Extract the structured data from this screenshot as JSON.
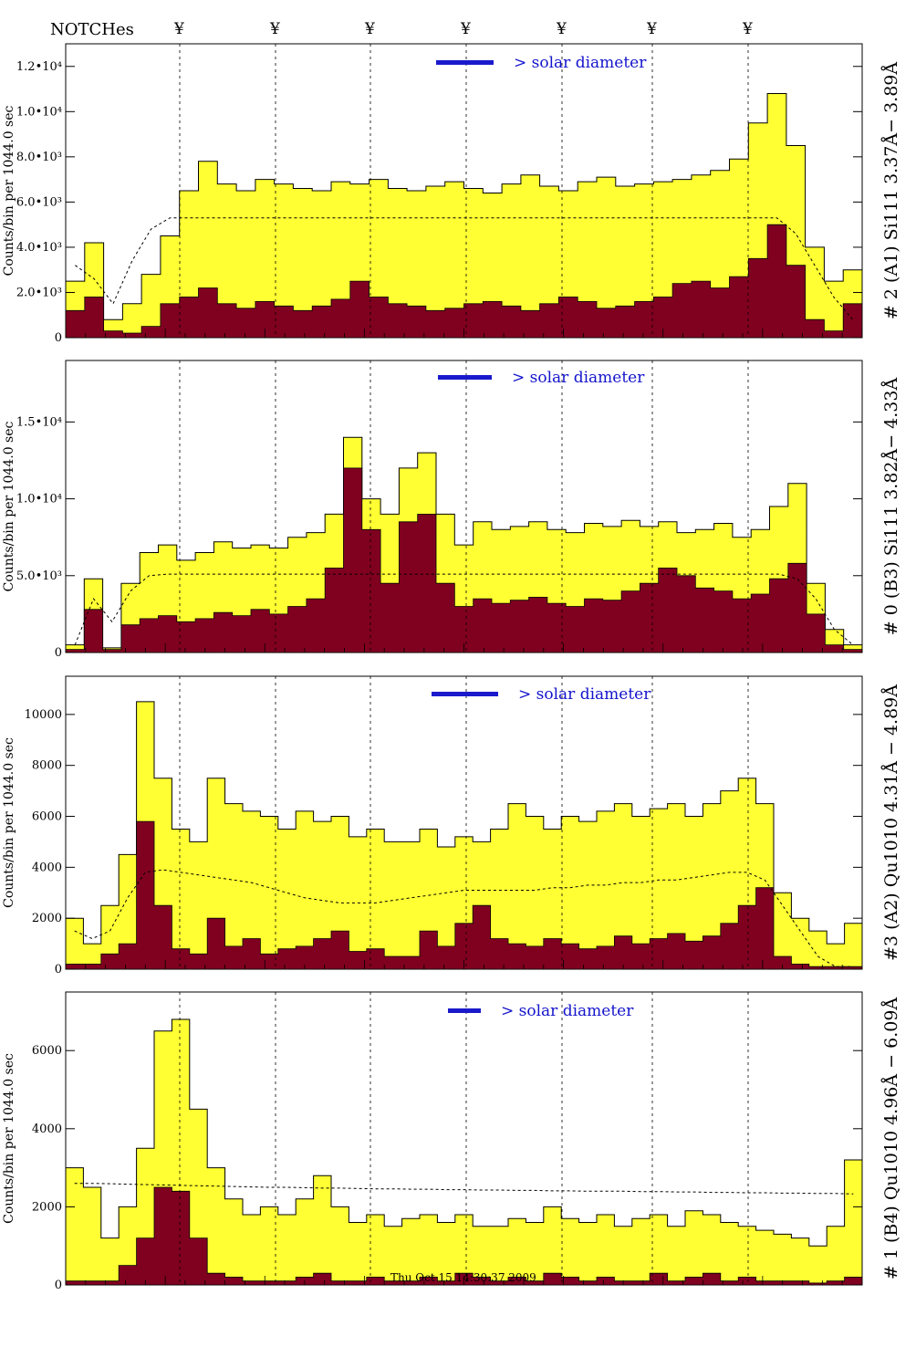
{
  "header": {
    "notches_label": "NOTCHes",
    "notch_marker": "¥"
  },
  "footer": {
    "timestamp": "Thu Oct 15 14:30:37 2009"
  },
  "colors": {
    "total_fill": "#ffff33",
    "sub_fill": "#800020",
    "solar_bar": "#1a1acc",
    "annotation_blue": "#1a1acc"
  },
  "chart_data": [
    {
      "type": "area",
      "panel_label": "# 2 (A1) Si111  3.37Å− 3.89Å",
      "ylabel": "Counts/bin per   1044.0 sec",
      "legend_text": "> solar diameter",
      "yticks": [
        "0",
        "2.0•10³",
        "4.0•10³",
        "6.0•10³",
        "8.0•10³",
        "1.0•10⁴",
        "1.2•10⁴"
      ],
      "ylim": [
        0,
        13000
      ],
      "xlim": [
        0,
        100
      ],
      "notch_positions": [
        14,
        26,
        38,
        50,
        62,
        74,
        86
      ],
      "series": [
        {
          "values": [
            2500,
            4200,
            800,
            1500,
            2800,
            4500,
            6500,
            7800,
            6800,
            6500,
            7000,
            6800,
            6600,
            6500,
            6900,
            6800,
            7000,
            6600,
            6500,
            6700,
            6900,
            6600,
            6400,
            6800,
            7200,
            6700,
            6500,
            6900,
            7100,
            6700,
            6800,
            6900,
            7000,
            7200,
            7400,
            7900,
            9500,
            10800,
            8500,
            4000,
            2500,
            3000
          ]
        },
        {
          "values": [
            1200,
            1800,
            300,
            200,
            500,
            1500,
            1800,
            2200,
            1500,
            1300,
            1600,
            1400,
            1200,
            1400,
            1700,
            2500,
            1800,
            1500,
            1400,
            1200,
            1300,
            1500,
            1600,
            1400,
            1200,
            1500,
            1800,
            1600,
            1300,
            1400,
            1600,
            1800,
            2400,
            2500,
            2200,
            2700,
            3500,
            5000,
            3200,
            800,
            300,
            1500
          ]
        },
        {
          "values": [
            3200,
            2600,
            1500,
            3400,
            4800,
            5300,
            5300,
            5300,
            5300,
            5300,
            5300,
            5300,
            5300,
            5300,
            5300,
            5300,
            5300,
            5300,
            5300,
            5300,
            5300,
            5300,
            5300,
            5300,
            5300,
            5300,
            5300,
            5300,
            5300,
            5300,
            5300,
            5300,
            5300,
            5300,
            5300,
            5300,
            5300,
            5300,
            4600,
            3200,
            1800,
            800
          ]
        }
      ]
    },
    {
      "type": "area",
      "panel_label": "# 0 (B3) Si111  3.82Å− 4.33Å",
      "ylabel": "Counts/bin per   1044.0 sec",
      "legend_text": "> solar diameter",
      "yticks": [
        "0",
        "5.0•10³",
        "1.0•10⁴",
        "1.5•10⁴"
      ],
      "ylim": [
        0,
        19000
      ],
      "xlim": [
        0,
        100
      ],
      "notch_positions": [
        14,
        26,
        38,
        50,
        62,
        74,
        86
      ],
      "series": [
        {
          "values": [
            500,
            4800,
            300,
            4500,
            6500,
            7000,
            6000,
            6500,
            7200,
            6800,
            7000,
            6800,
            7500,
            7800,
            9000,
            14000,
            10000,
            9000,
            12000,
            13000,
            9000,
            7000,
            8500,
            8000,
            8200,
            8500,
            8000,
            7800,
            8400,
            8200,
            8600,
            8200,
            8500,
            7800,
            8000,
            8400,
            7500,
            8000,
            9500,
            11000,
            4500,
            1500,
            500
          ]
        },
        {
          "values": [
            200,
            2800,
            200,
            1800,
            2200,
            2400,
            2000,
            2200,
            2600,
            2400,
            2800,
            2500,
            3000,
            3500,
            5500,
            12000,
            8000,
            4500,
            8500,
            9000,
            4500,
            3000,
            3500,
            3200,
            3400,
            3600,
            3200,
            3000,
            3500,
            3400,
            4000,
            4500,
            5500,
            5000,
            4200,
            4000,
            3500,
            3800,
            4800,
            5800,
            2500,
            500,
            200
          ]
        },
        {
          "values": [
            500,
            3500,
            2000,
            4000,
            5000,
            5100,
            5100,
            5100,
            5100,
            5100,
            5100,
            5100,
            5100,
            5100,
            5100,
            5100,
            5100,
            5100,
            5100,
            5100,
            5100,
            5100,
            5100,
            5100,
            5100,
            5100,
            5100,
            5100,
            5100,
            5100,
            5100,
            5100,
            5100,
            5100,
            5100,
            5100,
            5100,
            5100,
            5100,
            4800,
            3500,
            1500,
            500
          ]
        }
      ]
    },
    {
      "type": "area",
      "panel_label": "#3 (A2) Qu1010  4.31Å − 4.89Å",
      "ylabel": "Counts/bin per   1044.0 sec",
      "legend_text": "> solar diameter",
      "yticks": [
        "0",
        "2000",
        "4000",
        "6000",
        "8000",
        "10000"
      ],
      "ylim": [
        0,
        11500
      ],
      "xlim": [
        0,
        100
      ],
      "notch_positions": [
        14,
        26,
        38,
        50,
        62,
        74,
        86
      ],
      "series": [
        {
          "values": [
            2000,
            1000,
            2500,
            4500,
            10500,
            7500,
            5500,
            5000,
            7500,
            6500,
            6200,
            6000,
            5500,
            6200,
            5800,
            6000,
            5200,
            5500,
            5000,
            5000,
            5500,
            4800,
            5200,
            5000,
            5500,
            6500,
            6000,
            5500,
            6000,
            5800,
            6200,
            6500,
            6000,
            6300,
            6500,
            6000,
            6500,
            7000,
            7500,
            6500,
            3000,
            2000,
            1500,
            1000,
            1800
          ]
        },
        {
          "values": [
            200,
            200,
            600,
            1000,
            5800,
            2500,
            800,
            600,
            2000,
            900,
            1200,
            600,
            800,
            900,
            1200,
            1500,
            700,
            800,
            500,
            500,
            1500,
            900,
            1800,
            2500,
            1200,
            1000,
            900,
            1200,
            1000,
            800,
            900,
            1300,
            1000,
            1200,
            1400,
            1100,
            1300,
            1800,
            2500,
            3200,
            500,
            200,
            100,
            100,
            100
          ]
        },
        {
          "values": [
            1500,
            1200,
            1500,
            2800,
            3800,
            3900,
            3800,
            3700,
            3600,
            3500,
            3400,
            3200,
            3000,
            2800,
            2700,
            2600,
            2600,
            2600,
            2700,
            2800,
            2900,
            3000,
            3100,
            3100,
            3100,
            3100,
            3100,
            3200,
            3200,
            3300,
            3300,
            3400,
            3400,
            3500,
            3500,
            3600,
            3700,
            3800,
            3800,
            3500,
            2500,
            1500,
            500,
            100,
            100
          ]
        }
      ]
    },
    {
      "type": "area",
      "panel_label": "# 1 (B4) Qu1010 4.96Å − 6.09Å",
      "ylabel": "Counts/bin per   1044.0 sec",
      "legend_text": "> solar diameter",
      "yticks": [
        "0",
        "2000",
        "4000",
        "6000"
      ],
      "ylim": [
        0,
        7500
      ],
      "xlim": [
        0,
        100
      ],
      "notch_positions": [
        14,
        26,
        38,
        50,
        62,
        74,
        86
      ],
      "series": [
        {
          "values": [
            3000,
            2500,
            1200,
            2000,
            3500,
            6500,
            6800,
            4500,
            3000,
            2200,
            1800,
            2000,
            1800,
            2200,
            2800,
            2000,
            1600,
            1800,
            1500,
            1700,
            1800,
            1600,
            1800,
            1500,
            1500,
            1700,
            1600,
            2000,
            1700,
            1600,
            1800,
            1500,
            1700,
            1800,
            1500,
            1900,
            1800,
            1600,
            1500,
            1400,
            1300,
            1200,
            1000,
            1500,
            3200
          ]
        },
        {
          "values": [
            100,
            100,
            100,
            500,
            1200,
            2500,
            2400,
            1200,
            300,
            200,
            100,
            100,
            100,
            200,
            300,
            100,
            100,
            200,
            100,
            100,
            200,
            100,
            300,
            200,
            100,
            200,
            100,
            300,
            200,
            100,
            200,
            100,
            100,
            300,
            100,
            200,
            300,
            100,
            200,
            100,
            100,
            100,
            50,
            100,
            200
          ]
        },
        {
          "values": [
            2600,
            2600,
            2590,
            2580,
            2570,
            2560,
            2550,
            2540,
            2530,
            2520,
            2510,
            2500,
            2500,
            2490,
            2480,
            2480,
            2470,
            2460,
            2460,
            2450,
            2450,
            2440,
            2440,
            2430,
            2430,
            2420,
            2420,
            2410,
            2410,
            2400,
            2400,
            2400,
            2390,
            2390,
            2380,
            2380,
            2370,
            2370,
            2360,
            2360,
            2350,
            2350,
            2340,
            2340,
            2330
          ]
        }
      ]
    }
  ]
}
